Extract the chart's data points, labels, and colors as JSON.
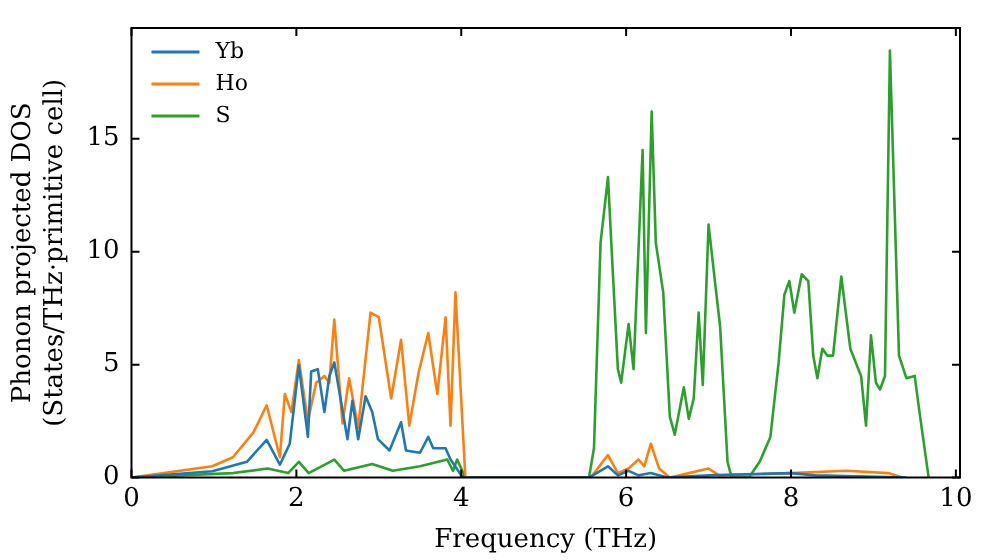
{
  "chart_data": {
    "type": "line",
    "xlabel": "Frequency (THz)",
    "ylabel": "Phonon projected DOS\n(States/THz·primitive cell)",
    "xlim": [
      0,
      10.05
    ],
    "ylim": [
      0,
      19.9
    ],
    "xticks": [
      0,
      2,
      4,
      6,
      8,
      10
    ],
    "yticks": [
      0,
      5,
      10,
      15
    ],
    "legend": "top left",
    "grid": false,
    "marker": "none",
    "line_style": "solid",
    "series": [
      {
        "name": "Yb",
        "color": "#1f77b4",
        "x": [
          0,
          0.98,
          1.4,
          1.64,
          1.8,
          1.92,
          2.03,
          2.14,
          2.18,
          2.26,
          2.34,
          2.4,
          2.46,
          2.62,
          2.68,
          2.75,
          2.84,
          2.92,
          2.99,
          3.13,
          3.27,
          3.33,
          3.5,
          3.6,
          3.66,
          3.81,
          3.87,
          4.0,
          4.05,
          5.55,
          5.78,
          5.9,
          6.03,
          6.15,
          6.3,
          6.5,
          7.0,
          8.0,
          8.3,
          9.4
        ],
        "values": [
          0,
          0.28,
          0.7,
          1.67,
          0.57,
          1.5,
          4.97,
          1.8,
          4.7,
          4.8,
          2.9,
          4.5,
          5.1,
          1.7,
          3.4,
          1.7,
          3.6,
          2.9,
          1.7,
          1.2,
          2.45,
          1.2,
          1.1,
          1.8,
          1.3,
          1.3,
          0.8,
          0.1,
          0,
          0,
          0.5,
          0.1,
          0.3,
          0.1,
          0.2,
          0,
          0.1,
          0.2,
          0.1,
          0
        ]
      },
      {
        "name": "Ho",
        "color": "#ff7f0e",
        "x": [
          0,
          0.98,
          1.23,
          1.48,
          1.64,
          1.8,
          1.86,
          1.94,
          2.03,
          2.14,
          2.24,
          2.34,
          2.4,
          2.46,
          2.56,
          2.64,
          2.75,
          2.9,
          3.0,
          3.15,
          3.27,
          3.37,
          3.48,
          3.6,
          3.71,
          3.81,
          3.87,
          3.93,
          4.05,
          5.57,
          5.78,
          5.9,
          6.03,
          6.15,
          6.22,
          6.3,
          6.4,
          6.53,
          7.0,
          7.13,
          8.0,
          8.67,
          9.18,
          9.35
        ],
        "values": [
          0,
          0.5,
          0.9,
          2.0,
          3.2,
          0.9,
          3.7,
          2.9,
          5.2,
          2.5,
          4.2,
          4.5,
          4.2,
          7.0,
          2.4,
          4.4,
          2.2,
          7.3,
          7.1,
          3.5,
          6.1,
          2.3,
          4.6,
          6.4,
          3.7,
          7.1,
          2.3,
          8.2,
          0,
          0,
          1.0,
          0.2,
          0.4,
          0.8,
          0.5,
          1.5,
          0.4,
          0,
          0.4,
          0.1,
          0.2,
          0.3,
          0.2,
          0
        ]
      },
      {
        "name": "S",
        "color": "#2ca02c",
        "x": [
          0,
          1.23,
          1.65,
          1.9,
          2.03,
          2.15,
          2.46,
          2.58,
          2.92,
          3.17,
          3.5,
          3.83,
          3.9,
          3.95,
          4.05,
          5.55,
          5.61,
          5.69,
          5.78,
          5.82,
          5.9,
          5.94,
          6.03,
          6.09,
          6.2,
          6.24,
          6.31,
          6.36,
          6.45,
          6.53,
          6.59,
          6.7,
          6.76,
          6.82,
          6.88,
          6.93,
          7.0,
          7.08,
          7.14,
          7.23,
          7.28,
          7.49,
          7.62,
          7.75,
          7.85,
          7.92,
          7.98,
          8.04,
          8.13,
          8.21,
          8.27,
          8.32,
          8.38,
          8.44,
          8.51,
          8.61,
          8.72,
          8.85,
          8.91,
          8.97,
          9.03,
          9.08,
          9.14,
          9.2,
          9.31,
          9.4,
          9.5,
          9.57,
          9.67
        ],
        "values": [
          0,
          0.2,
          0.4,
          0.2,
          0.7,
          0.2,
          0.8,
          0.3,
          0.6,
          0.3,
          0.5,
          0.8,
          0.3,
          0.8,
          0,
          0,
          1.3,
          10.4,
          13.3,
          10.4,
          4.8,
          4.2,
          6.8,
          4.8,
          14.5,
          6.4,
          16.2,
          10.4,
          8.2,
          2.7,
          1.9,
          4.0,
          2.6,
          3.5,
          7.3,
          4.1,
          11.2,
          8.6,
          6.7,
          0.7,
          0,
          0,
          0.7,
          1.8,
          5.1,
          8.1,
          8.7,
          7.3,
          9.0,
          8.7,
          5.4,
          4.4,
          5.7,
          5.4,
          5.4,
          8.9,
          5.7,
          4.5,
          2.3,
          6.3,
          4.2,
          3.9,
          4.5,
          18.9,
          5.4,
          4.4,
          4.5,
          2.6,
          0
        ]
      }
    ]
  }
}
